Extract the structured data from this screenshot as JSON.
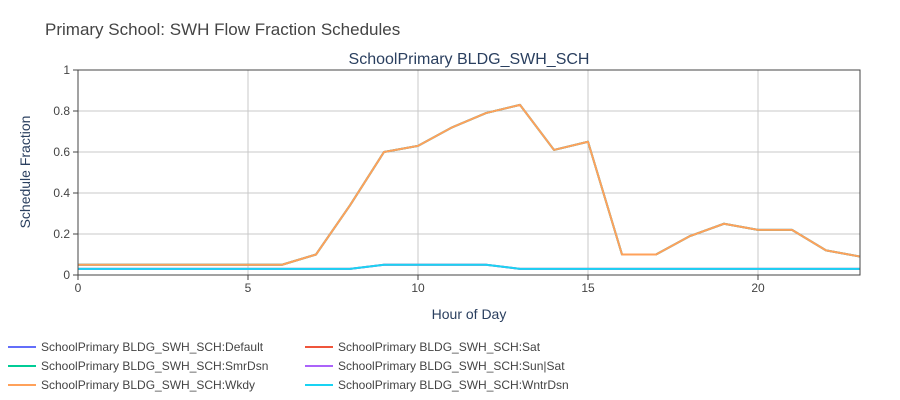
{
  "chart_data": {
    "type": "line",
    "title": "Primary School: SWH Flow Fraction Schedules",
    "subtitle": "SchoolPrimary BLDG_SWH_SCH",
    "xlabel": "Hour of Day",
    "ylabel": "Schedule Fraction",
    "xlim": [
      0,
      23
    ],
    "ylim": [
      0,
      1
    ],
    "xticks": [
      0,
      5,
      10,
      15,
      20
    ],
    "yticks": [
      0,
      0.2,
      0.4,
      0.6,
      0.8,
      1
    ],
    "grid": true,
    "legend_position": "bottom",
    "x": [
      0,
      1,
      2,
      3,
      4,
      5,
      6,
      7,
      8,
      9,
      10,
      11,
      12,
      13,
      14,
      15,
      16,
      17,
      18,
      19,
      20,
      21,
      22,
      23
    ],
    "series": [
      {
        "name": "SchoolPrimary BLDG_SWH_SCH:Default",
        "color": "#636efa",
        "values": [
          0.05,
          0.05,
          0.05,
          0.05,
          0.05,
          0.05,
          0.05,
          0.1,
          0.34,
          0.6,
          0.63,
          0.72,
          0.79,
          0.83,
          0.61,
          0.65,
          0.1,
          0.1,
          0.19,
          0.25,
          0.22,
          0.22,
          0.12,
          0.09
        ]
      },
      {
        "name": "SchoolPrimary BLDG_SWH_SCH:Sat",
        "color": "#ef553b",
        "values": [
          0.03,
          0.03,
          0.03,
          0.03,
          0.03,
          0.03,
          0.03,
          0.03,
          0.03,
          0.05,
          0.05,
          0.05,
          0.05,
          0.03,
          0.03,
          0.03,
          0.03,
          0.03,
          0.03,
          0.03,
          0.03,
          0.03,
          0.03,
          0.03
        ]
      },
      {
        "name": "SchoolPrimary BLDG_SWH_SCH:SmrDsn",
        "color": "#00cc96",
        "values": [
          0.05,
          0.05,
          0.05,
          0.05,
          0.05,
          0.05,
          0.05,
          0.1,
          0.34,
          0.6,
          0.63,
          0.72,
          0.79,
          0.83,
          0.61,
          0.65,
          0.1,
          0.1,
          0.19,
          0.25,
          0.22,
          0.22,
          0.12,
          0.09
        ]
      },
      {
        "name": "SchoolPrimary BLDG_SWH_SCH:Sun|Sat",
        "color": "#ab63fa",
        "values": [
          0.03,
          0.03,
          0.03,
          0.03,
          0.03,
          0.03,
          0.03,
          0.03,
          0.03,
          0.05,
          0.05,
          0.05,
          0.05,
          0.03,
          0.03,
          0.03,
          0.03,
          0.03,
          0.03,
          0.03,
          0.03,
          0.03,
          0.03,
          0.03
        ]
      },
      {
        "name": "SchoolPrimary BLDG_SWH_SCH:Wkdy",
        "color": "#ffa15a",
        "values": [
          0.05,
          0.05,
          0.05,
          0.05,
          0.05,
          0.05,
          0.05,
          0.1,
          0.34,
          0.6,
          0.63,
          0.72,
          0.79,
          0.83,
          0.61,
          0.65,
          0.1,
          0.1,
          0.19,
          0.25,
          0.22,
          0.22,
          0.12,
          0.09
        ]
      },
      {
        "name": "SchoolPrimary BLDG_SWH_SCH:WntrDsn",
        "color": "#19d3f3",
        "values": [
          0.03,
          0.03,
          0.03,
          0.03,
          0.03,
          0.03,
          0.03,
          0.03,
          0.03,
          0.05,
          0.05,
          0.05,
          0.05,
          0.03,
          0.03,
          0.03,
          0.03,
          0.03,
          0.03,
          0.03,
          0.03,
          0.03,
          0.03,
          0.03
        ]
      }
    ],
    "legend_order": [
      0,
      2,
      4,
      1,
      3,
      5
    ]
  }
}
